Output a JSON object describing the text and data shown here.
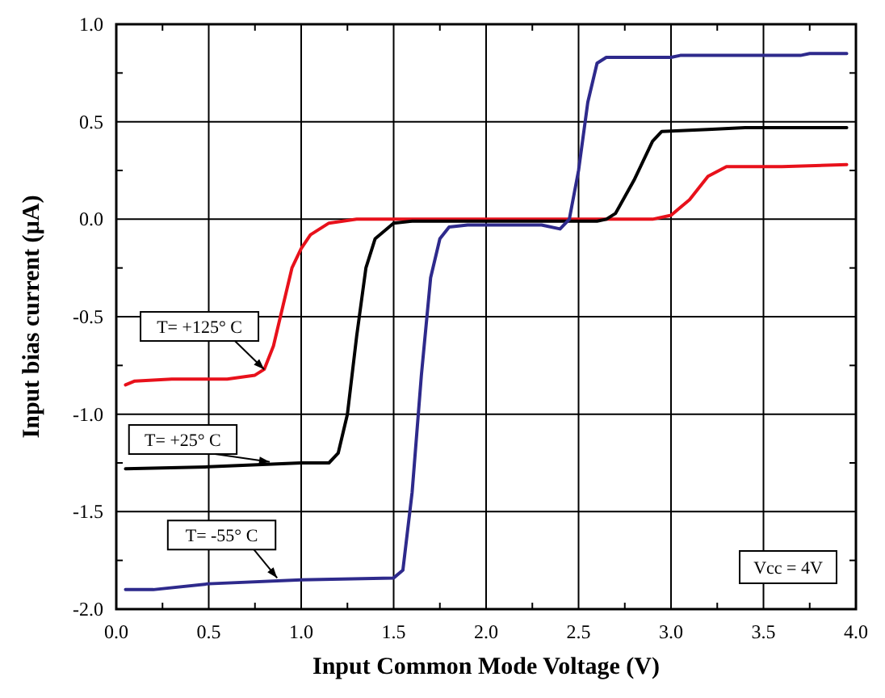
{
  "chart_data": {
    "type": "line",
    "xlabel": "Input Common Mode Voltage (V)",
    "ylabel": "Input bias current (µA)",
    "xlim": [
      0,
      4
    ],
    "ylim": [
      -2,
      1
    ],
    "xticks": [
      {
        "value": 0,
        "label": "0.0"
      },
      {
        "value": 0.5,
        "label": "0.5"
      },
      {
        "value": 1,
        "label": "1.0"
      },
      {
        "value": 1.5,
        "label": "1.5"
      },
      {
        "value": 2,
        "label": "2.0"
      },
      {
        "value": 2.5,
        "label": "2.5"
      },
      {
        "value": 3,
        "label": "3.0"
      },
      {
        "value": 3.5,
        "label": "3.5"
      },
      {
        "value": 4,
        "label": "4.0"
      }
    ],
    "yticks": [
      {
        "value": -2,
        "label": "-2.0"
      },
      {
        "value": -1.5,
        "label": "-1.5"
      },
      {
        "value": -1,
        "label": "-1.0"
      },
      {
        "value": -0.5,
        "label": "-0.5"
      },
      {
        "value": 0,
        "label": "0.0"
      },
      {
        "value": 0.5,
        "label": "0.5"
      },
      {
        "value": 1,
        "label": "1.0"
      }
    ],
    "grid": true,
    "marker": "none",
    "line_style": "solid",
    "annotations": [
      "Vcc = 4V"
    ],
    "series": [
      {
        "name": "T= +125° C",
        "color": "#e8111b",
        "x": [
          0.05,
          0.1,
          0.3,
          0.6,
          0.75,
          0.8,
          0.85,
          0.9,
          0.95,
          1.0,
          1.05,
          1.15,
          1.3,
          2.9,
          3.0,
          3.1,
          3.2,
          3.3,
          3.4,
          3.6,
          3.95
        ],
        "values": [
          -0.85,
          -0.83,
          -0.82,
          -0.82,
          -0.8,
          -0.77,
          -0.65,
          -0.45,
          -0.25,
          -0.15,
          -0.08,
          -0.02,
          0,
          0,
          0.02,
          0.1,
          0.22,
          0.27,
          0.27,
          0.27,
          0.28
        ]
      },
      {
        "name": "T= +25° C",
        "color": "#000000",
        "x": [
          0.05,
          0.5,
          1.0,
          1.15,
          1.2,
          1.25,
          1.3,
          1.35,
          1.4,
          1.5,
          1.6,
          2.6,
          2.65,
          2.7,
          2.8,
          2.9,
          2.95,
          3.2,
          3.4,
          3.95
        ],
        "values": [
          -1.28,
          -1.27,
          -1.25,
          -1.25,
          -1.2,
          -1.0,
          -0.6,
          -0.25,
          -0.1,
          -0.02,
          -0.01,
          -0.01,
          0,
          0.03,
          0.2,
          0.4,
          0.45,
          0.46,
          0.47,
          0.47
        ]
      },
      {
        "name": "T= -55° C",
        "color": "#2e2a8c",
        "x": [
          0.05,
          0.2,
          0.5,
          1.0,
          1.5,
          1.55,
          1.6,
          1.65,
          1.7,
          1.75,
          1.8,
          1.9,
          2.3,
          2.4,
          2.45,
          2.5,
          2.55,
          2.6,
          2.65,
          3.0,
          3.05,
          3.7,
          3.75,
          3.95
        ],
        "values": [
          -1.9,
          -1.9,
          -1.87,
          -1.85,
          -1.84,
          -1.8,
          -1.4,
          -0.8,
          -0.3,
          -0.1,
          -0.04,
          -0.03,
          -0.03,
          -0.05,
          0,
          0.25,
          0.6,
          0.8,
          0.83,
          0.83,
          0.84,
          0.84,
          0.85,
          0.85
        ]
      }
    ]
  }
}
